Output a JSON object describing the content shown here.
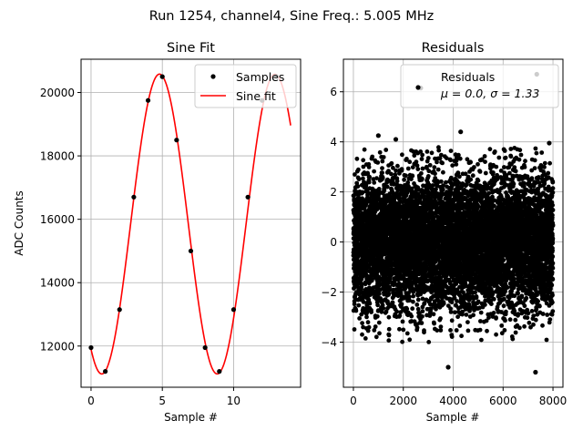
{
  "figure": {
    "suptitle": "Run 1254, channel4, Sine Freq.: 5.005 MHz"
  },
  "chart_data": [
    {
      "type": "line",
      "title": "Sine Fit",
      "xlabel": "Sample #",
      "ylabel": "ADC Counts",
      "xlim": [
        -0.7,
        14.7
      ],
      "ylim": [
        10700,
        21050
      ],
      "xticks": [
        0,
        5,
        10
      ],
      "yticks": [
        12000,
        14000,
        16000,
        18000,
        20000
      ],
      "grid": true,
      "legend": {
        "placement": "top-right",
        "entries": [
          "Samples",
          "Sine fit"
        ]
      },
      "series": [
        {
          "name": "Samples",
          "kind": "scatter",
          "color": "#000000",
          "x": [
            0,
            1,
            2,
            3,
            4,
            5,
            6,
            7,
            8,
            9,
            10,
            11,
            12,
            13
          ],
          "y": [
            11950,
            11200,
            13150,
            16700,
            19750,
            20500,
            18500,
            15000,
            11950,
            11200,
            13150,
            16700,
            19750,
            20500
          ]
        },
        {
          "name": "Sine fit",
          "kind": "line",
          "color": "#ff0000",
          "model": {
            "offset": 15850,
            "amplitude": 4730,
            "period": 8.1,
            "peak_x": 4.8,
            "x_range": [
              0,
              14
            ]
          }
        }
      ]
    },
    {
      "type": "scatter",
      "title": "Residuals",
      "xlabel": "Sample #",
      "ylabel": "",
      "xlim": [
        -400,
        8400
      ],
      "ylim": [
        -5.8,
        7.3
      ],
      "xticks": [
        0,
        2000,
        4000,
        6000,
        8000
      ],
      "yticks": [
        -4,
        -2,
        0,
        2,
        4,
        6
      ],
      "grid": true,
      "legend": {
        "placement": "top-right",
        "entries": [
          "Residuals",
          "μ = 0.0, σ = 1.33"
        ]
      },
      "series": [
        {
          "name": "Residuals",
          "color": "#000000",
          "n_points": 8000,
          "mean": 0.0,
          "sigma": 1.33,
          "x_range": [
            0,
            8000
          ],
          "outliers": [
            [
              7350,
              6.7
            ],
            [
              2700,
              6.15
            ],
            [
              7300,
              -5.2
            ],
            [
              3800,
              -5.0
            ],
            [
              4300,
              4.4
            ],
            [
              1000,
              4.25
            ],
            [
              1700,
              4.1
            ],
            [
              7850,
              3.95
            ]
          ]
        }
      ]
    }
  ]
}
